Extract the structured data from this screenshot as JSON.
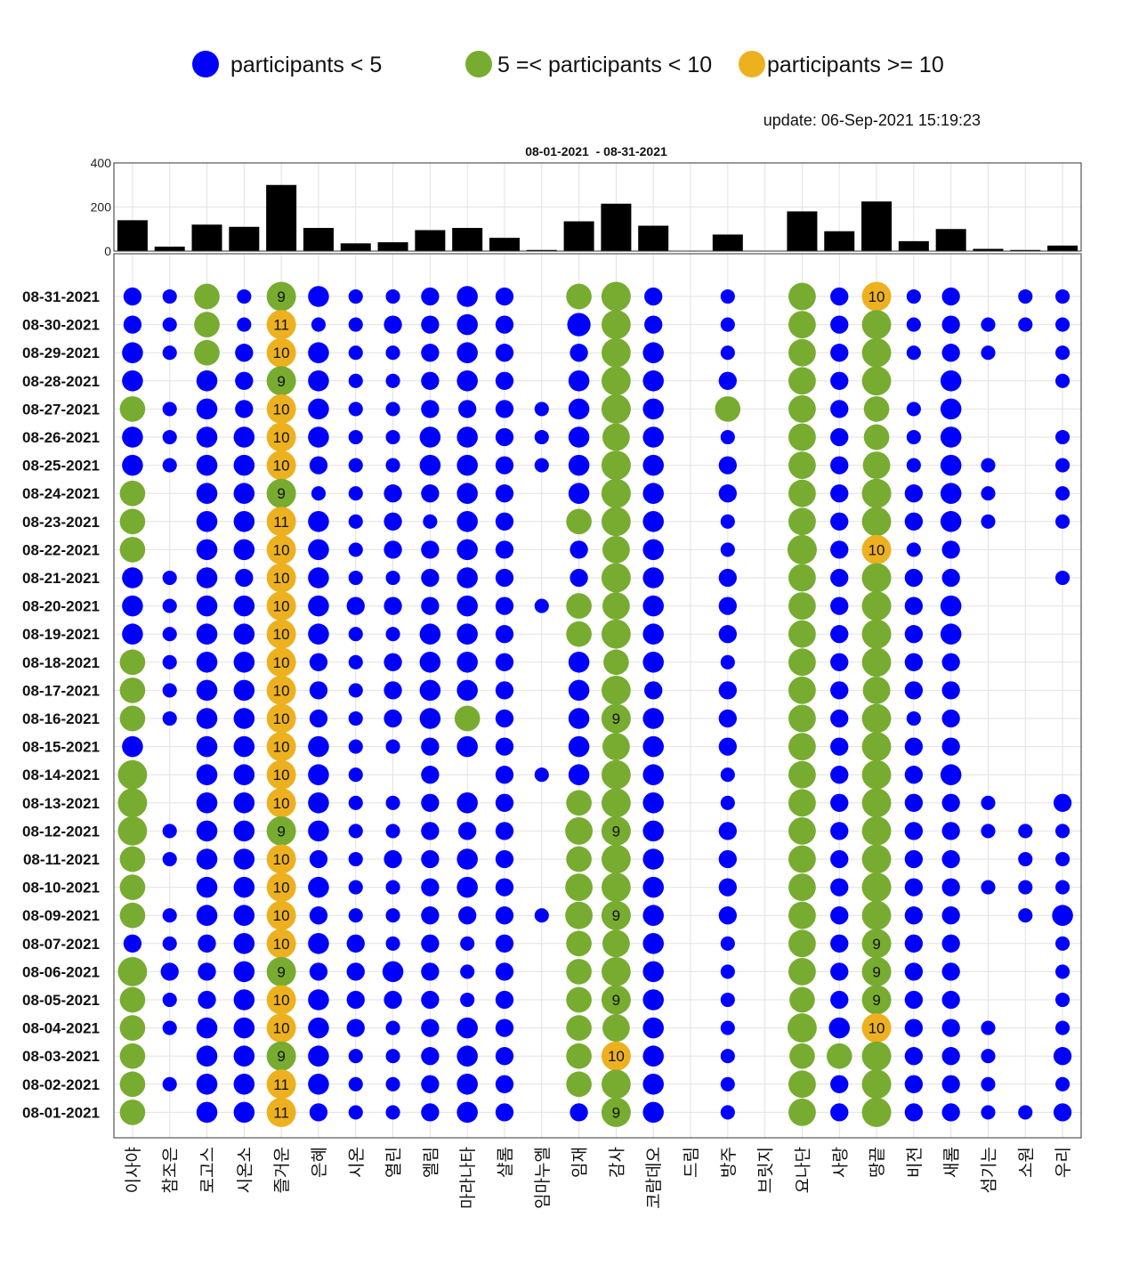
{
  "legend": [
    {
      "label": "participants < 5",
      "color": "#0000ff"
    },
    {
      "label": "5 =< participants < 10",
      "color": "#77ac30"
    },
    {
      "label": "participants >= 10",
      "color": "#edb120"
    }
  ],
  "update": "update: 06-Sep-2021 15:19:23",
  "chart_data": [
    {
      "type": "bar",
      "title": "08-01-2021  - 08-31-2021",
      "ylim": [
        0,
        400
      ],
      "yticks": [
        "0",
        "200",
        "400"
      ],
      "categories": [
        "이사야",
        "참조은",
        "로고스",
        "시온소",
        "즐거운",
        "은혜",
        "시온",
        "열린",
        "엘림",
        "마라나타",
        "샬롬",
        "임마누엘",
        "임재",
        "감사",
        "코람데오",
        "드림",
        "방주",
        "브릿지",
        "요나단",
        "사랑",
        "땅끝",
        "비전",
        "새롬",
        "섬기는",
        "소원",
        "우리"
      ],
      "values": [
        140,
        20,
        120,
        110,
        300,
        105,
        35,
        40,
        95,
        105,
        60,
        5,
        135,
        215,
        115,
        0,
        75,
        0,
        180,
        90,
        225,
        45,
        100,
        10,
        5,
        25
      ],
      "grid": true
    },
    {
      "type": "scatter",
      "subtype": "bubble",
      "categories": [
        "이사야",
        "참조은",
        "로고스",
        "시온소",
        "즐거운",
        "은혜",
        "시온",
        "열린",
        "엘림",
        "마라나타",
        "샬롬",
        "임마누엘",
        "임재",
        "감사",
        "코람데오",
        "드림",
        "방주",
        "브릿지",
        "요나단",
        "사랑",
        "땅끝",
        "비전",
        "새롬",
        "섬기는",
        "소원",
        "우리"
      ],
      "dates": [
        "08-31-2021",
        "08-30-2021",
        "08-29-2021",
        "08-28-2021",
        "08-27-2021",
        "08-26-2021",
        "08-25-2021",
        "08-24-2021",
        "08-23-2021",
        "08-22-2021",
        "08-21-2021",
        "08-20-2021",
        "08-19-2021",
        "08-18-2021",
        "08-17-2021",
        "08-16-2021",
        "08-15-2021",
        "08-14-2021",
        "08-13-2021",
        "08-12-2021",
        "08-11-2021",
        "08-10-2021",
        "08-09-2021",
        "08-07-2021",
        "08-06-2021",
        "08-05-2021",
        "08-04-2021",
        "08-03-2021",
        "08-02-2021",
        "08-01-2021"
      ],
      "values": [
        [
          2,
          1,
          5,
          1,
          9,
          3,
          1,
          1,
          2,
          3,
          2,
          0,
          5,
          8,
          2,
          0,
          1,
          0,
          6,
          2,
          10,
          1,
          2,
          0,
          1,
          1
        ],
        [
          2,
          1,
          5,
          1,
          11,
          1,
          1,
          2,
          2,
          3,
          2,
          0,
          4,
          7,
          2,
          0,
          1,
          0,
          6,
          2,
          7,
          1,
          2,
          1,
          1,
          1
        ],
        [
          3,
          1,
          5,
          2,
          10,
          3,
          1,
          1,
          2,
          3,
          2,
          0,
          2,
          7,
          3,
          0,
          1,
          0,
          6,
          2,
          7,
          1,
          2,
          1,
          0,
          1
        ],
        [
          3,
          0,
          3,
          2,
          9,
          3,
          1,
          1,
          2,
          3,
          2,
          0,
          3,
          7,
          3,
          0,
          2,
          0,
          6,
          2,
          7,
          0,
          3,
          0,
          0,
          1
        ],
        [
          5,
          1,
          3,
          2,
          10,
          3,
          1,
          1,
          2,
          2,
          2,
          1,
          3,
          8,
          3,
          0,
          5,
          0,
          6,
          2,
          5,
          1,
          3,
          0,
          0,
          0
        ],
        [
          3,
          1,
          3,
          3,
          10,
          3,
          1,
          1,
          3,
          3,
          2,
          1,
          3,
          6,
          3,
          0,
          1,
          0,
          6,
          2,
          5,
          1,
          3,
          0,
          0,
          1
        ],
        [
          3,
          1,
          3,
          3,
          10,
          2,
          1,
          1,
          3,
          3,
          2,
          1,
          3,
          8,
          3,
          0,
          2,
          0,
          6,
          2,
          6,
          1,
          3,
          1,
          0,
          1
        ],
        [
          5,
          0,
          3,
          3,
          9,
          1,
          1,
          2,
          2,
          3,
          2,
          0,
          3,
          8,
          3,
          0,
          2,
          0,
          6,
          2,
          8,
          2,
          3,
          1,
          0,
          1
        ],
        [
          5,
          0,
          3,
          3,
          11,
          3,
          1,
          2,
          1,
          3,
          2,
          0,
          5,
          7,
          3,
          0,
          1,
          0,
          6,
          2,
          7,
          2,
          3,
          1,
          0,
          1
        ],
        [
          5,
          0,
          3,
          3,
          10,
          3,
          1,
          2,
          2,
          3,
          2,
          0,
          2,
          6,
          3,
          0,
          1,
          0,
          8,
          2,
          10,
          1,
          2,
          0,
          0,
          0
        ],
        [
          3,
          1,
          3,
          2,
          10,
          3,
          1,
          1,
          2,
          3,
          2,
          0,
          2,
          8,
          3,
          0,
          2,
          0,
          6,
          2,
          8,
          2,
          2,
          0,
          0,
          1
        ],
        [
          3,
          1,
          3,
          3,
          10,
          3,
          2,
          2,
          2,
          3,
          2,
          1,
          5,
          6,
          3,
          0,
          2,
          0,
          6,
          2,
          8,
          2,
          3,
          0,
          0,
          0
        ],
        [
          3,
          1,
          3,
          3,
          10,
          3,
          1,
          1,
          3,
          3,
          2,
          0,
          5,
          7,
          3,
          0,
          2,
          0,
          6,
          2,
          8,
          2,
          3,
          0,
          0,
          0
        ],
        [
          5,
          1,
          3,
          3,
          10,
          2,
          1,
          2,
          3,
          3,
          2,
          0,
          3,
          5,
          3,
          0,
          1,
          0,
          6,
          2,
          7,
          2,
          2,
          0,
          0,
          0
        ],
        [
          5,
          1,
          3,
          3,
          10,
          2,
          1,
          2,
          3,
          3,
          2,
          0,
          3,
          7,
          2,
          0,
          2,
          0,
          6,
          2,
          6,
          2,
          2,
          0,
          0,
          0
        ],
        [
          5,
          1,
          3,
          3,
          10,
          2,
          1,
          2,
          3,
          5,
          2,
          0,
          3,
          9,
          3,
          0,
          2,
          0,
          6,
          2,
          7,
          1,
          2,
          0,
          0,
          0
        ],
        [
          3,
          0,
          3,
          3,
          10,
          3,
          1,
          1,
          2,
          3,
          2,
          0,
          3,
          6,
          3,
          0,
          2,
          0,
          6,
          2,
          7,
          2,
          2,
          0,
          0,
          0
        ],
        [
          7,
          0,
          3,
          3,
          10,
          3,
          1,
          0,
          2,
          0,
          2,
          1,
          3,
          7,
          3,
          0,
          1,
          0,
          6,
          2,
          7,
          2,
          3,
          0,
          0,
          0
        ],
        [
          7,
          0,
          3,
          3,
          10,
          3,
          1,
          1,
          2,
          3,
          2,
          0,
          5,
          7,
          3,
          0,
          1,
          0,
          6,
          2,
          7,
          2,
          2,
          1,
          0,
          2
        ],
        [
          7,
          1,
          3,
          3,
          9,
          3,
          1,
          1,
          2,
          2,
          2,
          0,
          6,
          9,
          3,
          0,
          2,
          0,
          6,
          2,
          7,
          2,
          2,
          1,
          1,
          1
        ],
        [
          5,
          1,
          3,
          3,
          10,
          2,
          1,
          2,
          2,
          3,
          2,
          0,
          5,
          7,
          3,
          0,
          2,
          0,
          6,
          2,
          7,
          2,
          2,
          0,
          1,
          1
        ],
        [
          5,
          0,
          3,
          3,
          10,
          3,
          1,
          1,
          2,
          3,
          2,
          0,
          6,
          7,
          3,
          0,
          2,
          0,
          6,
          2,
          8,
          2,
          2,
          1,
          1,
          1
        ],
        [
          5,
          1,
          3,
          3,
          10,
          2,
          1,
          1,
          2,
          2,
          2,
          1,
          6,
          9,
          3,
          0,
          2,
          0,
          6,
          2,
          7,
          2,
          2,
          0,
          1,
          3
        ],
        [
          2,
          1,
          2,
          3,
          10,
          3,
          2,
          1,
          2,
          1,
          2,
          0,
          5,
          6,
          3,
          0,
          1,
          0,
          6,
          2,
          9,
          2,
          2,
          0,
          0,
          1
        ],
        [
          7,
          2,
          2,
          3,
          9,
          2,
          2,
          3,
          2,
          1,
          2,
          0,
          5,
          7,
          3,
          0,
          1,
          0,
          6,
          2,
          9,
          2,
          2,
          0,
          0,
          1
        ],
        [
          5,
          1,
          2,
          3,
          10,
          3,
          2,
          2,
          2,
          1,
          2,
          0,
          5,
          9,
          3,
          0,
          1,
          0,
          5,
          2,
          9,
          2,
          2,
          0,
          0,
          1
        ],
        [
          5,
          1,
          3,
          3,
          10,
          3,
          2,
          1,
          2,
          3,
          2,
          0,
          5,
          6,
          3,
          0,
          1,
          0,
          7,
          3,
          10,
          2,
          2,
          1,
          0,
          1
        ],
        [
          5,
          0,
          3,
          3,
          9,
          3,
          1,
          1,
          2,
          3,
          2,
          0,
          5,
          10,
          3,
          0,
          1,
          0,
          5,
          5,
          8,
          2,
          2,
          1,
          0,
          2
        ],
        [
          5,
          1,
          3,
          3,
          11,
          3,
          1,
          1,
          2,
          3,
          2,
          0,
          5,
          7,
          3,
          0,
          1,
          0,
          6,
          2,
          8,
          2,
          2,
          1,
          0,
          1
        ],
        [
          5,
          0,
          3,
          3,
          11,
          2,
          1,
          1,
          2,
          3,
          2,
          0,
          2,
          9,
          3,
          0,
          1,
          0,
          6,
          2,
          8,
          2,
          2,
          1,
          1,
          2
        ]
      ],
      "thresholds": [
        5,
        10
      ],
      "grid": true
    }
  ]
}
